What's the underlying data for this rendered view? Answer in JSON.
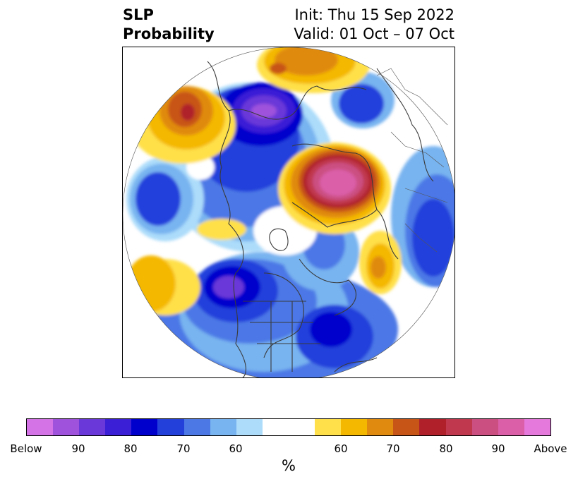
{
  "title": {
    "left_line1": "SLP",
    "left_line2": "Probability",
    "right_line1": "Init: Thu 15 Sep 2022",
    "right_line2": "Valid: 01 Oct – 07 Oct"
  },
  "colorbar": {
    "label": "%",
    "ticks": [
      "Below",
      "90",
      "80",
      "70",
      "60",
      "60",
      "70",
      "80",
      "90",
      "Above"
    ],
    "below_colors": [
      "#d473e6",
      "#9f52dc",
      "#6a38d8",
      "#3a1fd6",
      "#0000cd",
      "#2440db",
      "#4c78e6",
      "#78b4f0",
      "#acdcfa"
    ],
    "neutral_color": "#ffffff",
    "above_colors": [
      "#ffe04a",
      "#f4b800",
      "#e08a10",
      "#c85518",
      "#b0202a",
      "#c0384e",
      "#cc4f82",
      "#da5ea8",
      "#e57adc"
    ]
  }
}
